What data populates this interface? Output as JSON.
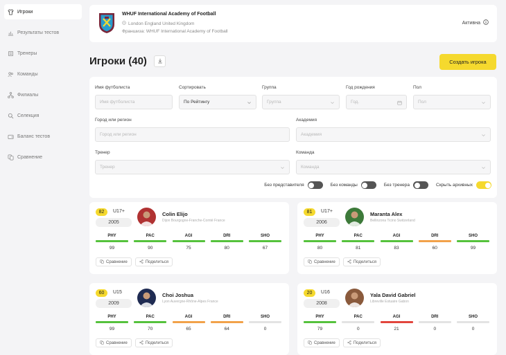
{
  "sidebar": {
    "items": [
      {
        "label": "Игроки",
        "icon": "shirt-icon",
        "active": true
      },
      {
        "label": "Результаты тестов",
        "icon": "chart-icon",
        "active": false
      },
      {
        "label": "Тренеры",
        "icon": "whistle-icon",
        "active": false
      },
      {
        "label": "Команды",
        "icon": "team-icon",
        "active": false
      },
      {
        "label": "Филиалы",
        "icon": "branches-icon",
        "active": false
      },
      {
        "label": "Селекция",
        "icon": "search-icon",
        "active": false
      },
      {
        "label": "Баланс тестов",
        "icon": "wallet-icon",
        "active": false
      },
      {
        "label": "Сравнение",
        "icon": "compare-icon",
        "active": false
      }
    ]
  },
  "academy": {
    "name": "WHUF International Academy of Football",
    "location": "London England United Kingdom",
    "franchise": "Франшиза: WHUF International Academy of Football",
    "status": "Активна",
    "colors": {
      "claret": "#7a263a",
      "blue": "#1bb1e7"
    }
  },
  "page": {
    "title": "Игроки (40)",
    "create_label": "Создать игрока",
    "accent": "#f5d92e"
  },
  "filters": {
    "name": {
      "label": "Имя футболиста",
      "placeholder": "Имя футболиста"
    },
    "sort": {
      "label": "Сортировать",
      "value": "По Рейтингу"
    },
    "group": {
      "label": "Группа",
      "placeholder": "Группа"
    },
    "birth_year": {
      "label": "Год рождения",
      "placeholder": "Год."
    },
    "gender": {
      "label": "Пол",
      "placeholder": "Пол"
    },
    "city": {
      "label": "Город или регион",
      "placeholder": "Город или регион"
    },
    "academy": {
      "label": "Академия",
      "placeholder": "Академия"
    },
    "coach": {
      "label": "Тренер",
      "placeholder": "Тренер"
    },
    "team": {
      "label": "Команда",
      "placeholder": "Команда"
    },
    "toggles": [
      {
        "label": "Без представителя",
        "on": false
      },
      {
        "label": "Без команды",
        "on": false
      },
      {
        "label": "Без тренера",
        "on": false
      },
      {
        "label": "Скрыть архивных",
        "on": true
      }
    ]
  },
  "stat_colors": {
    "green": "#55c23c",
    "orange": "#f2a24a",
    "red": "#e2453d",
    "gray": "#e3e3e3"
  },
  "players": [
    {
      "rating": "82",
      "age_group": "U17+",
      "year": "2005",
      "name": "Colin Elijo",
      "location": "Dijon Bourgogne-Franche-Comté France",
      "avatar_bg": "#b03232",
      "stats": [
        {
          "label": "PHY",
          "value": "99",
          "color": "green"
        },
        {
          "label": "PAC",
          "value": "90",
          "color": "green"
        },
        {
          "label": "AGI",
          "value": "75",
          "color": "green"
        },
        {
          "label": "DRI",
          "value": "80",
          "color": "green"
        },
        {
          "label": "SHO",
          "value": "67",
          "color": "green"
        }
      ]
    },
    {
      "rating": "81",
      "age_group": "U17+",
      "year": "2006",
      "name": "Maranta Alex",
      "location": "Bellinzona Ticino Switzerland",
      "avatar_bg": "#3d7a3a",
      "stats": [
        {
          "label": "PHY",
          "value": "80",
          "color": "green"
        },
        {
          "label": "PAC",
          "value": "81",
          "color": "green"
        },
        {
          "label": "AGI",
          "value": "83",
          "color": "green"
        },
        {
          "label": "DRI",
          "value": "60",
          "color": "orange"
        },
        {
          "label": "SHO",
          "value": "99",
          "color": "green"
        }
      ]
    },
    {
      "rating": "60",
      "age_group": "U15",
      "year": "2009",
      "name": "Choi Joshua",
      "location": "Lyon Auvergne-Rhône-Alpes France",
      "avatar_bg": "#1f2b52",
      "stats": [
        {
          "label": "PHY",
          "value": "99",
          "color": "green"
        },
        {
          "label": "PAC",
          "value": "70",
          "color": "green"
        },
        {
          "label": "AGI",
          "value": "65",
          "color": "orange"
        },
        {
          "label": "DRI",
          "value": "64",
          "color": "orange"
        },
        {
          "label": "SHO",
          "value": "0",
          "color": "gray"
        }
      ]
    },
    {
      "rating": "20",
      "age_group": "U16",
      "year": "2008",
      "name": "Yala David Gabriel",
      "location": "Libreville Estuaire Gabon",
      "avatar_bg": "#8a5a3c",
      "stats": [
        {
          "label": "PHY",
          "value": "79",
          "color": "green"
        },
        {
          "label": "PAC",
          "value": "0",
          "color": "gray"
        },
        {
          "label": "AGI",
          "value": "21",
          "color": "red"
        },
        {
          "label": "DRI",
          "value": "0",
          "color": "gray"
        },
        {
          "label": "SHO",
          "value": "0",
          "color": "gray"
        }
      ]
    }
  ],
  "card_actions": {
    "compare": "Сравнение",
    "share": "Поделиться"
  }
}
